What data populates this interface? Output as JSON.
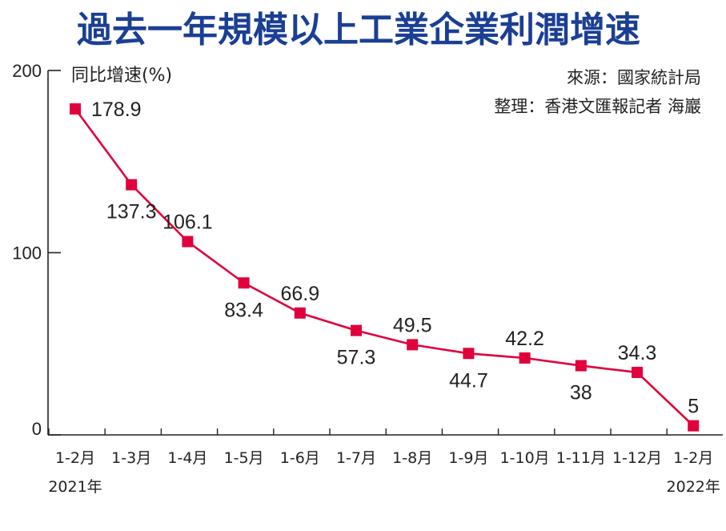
{
  "title": "過去一年規模以上工業企業利潤增速",
  "source": "來源：國家統計局",
  "editor": "整理：香港文匯報記者 海巖",
  "colors": {
    "title": "#1b3f95",
    "line": "#e0003c",
    "marker": "#e0003c",
    "text": "#222222",
    "axis": "#222222"
  },
  "chart_data": {
    "type": "line",
    "ylabel": "同比增速(%)",
    "xlabel": "",
    "ylim": [
      0,
      200
    ],
    "yticks": [
      "0",
      "100",
      "200"
    ],
    "grid": false,
    "categories": [
      "1-2月",
      "1-3月",
      "1-4月",
      "1-5月",
      "1-6月",
      "1-7月",
      "1-8月",
      "1-9月",
      "1-10月",
      "1-11月",
      "1-12月",
      "1-2月"
    ],
    "year_labels": [
      "2021年",
      "",
      "",
      "",
      "",
      "",
      "",
      "",
      "",
      "",
      "",
      "2022年"
    ],
    "series": [
      {
        "values": [
          178.9,
          137.3,
          106.1,
          83.4,
          66.9,
          57.3,
          49.5,
          44.7,
          42.2,
          38,
          34.3,
          5
        ],
        "labels": [
          "178.9",
          "137.3",
          "106.1",
          "83.4",
          "66.9",
          "57.3",
          "49.5",
          "44.7",
          "42.2",
          "38",
          "34.3",
          "5"
        ]
      }
    ]
  }
}
